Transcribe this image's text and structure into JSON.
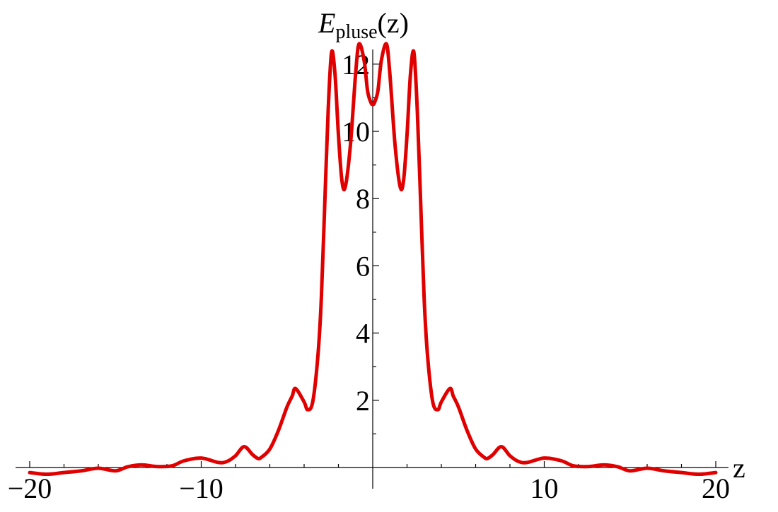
{
  "chart_data": {
    "type": "line",
    "title": "",
    "xlabel": "z",
    "ylabel": {
      "base": "E",
      "subscript": "pluse",
      "suffix": "(z)"
    },
    "xlim": [
      -20,
      20
    ],
    "ylim": [
      0,
      12.8
    ],
    "grid": false,
    "x_ticks": [
      {
        "value": -20,
        "label": "−20"
      },
      {
        "value": -10,
        "label": "−10"
      },
      {
        "value": 10,
        "label": "10"
      },
      {
        "value": 20,
        "label": "20"
      }
    ],
    "x_minor_ticks": [
      -18,
      -16,
      -14,
      -12,
      -8,
      -6,
      -4,
      -2,
      2,
      4,
      6,
      8,
      12,
      14,
      16,
      18
    ],
    "y_ticks": [
      {
        "value": 2,
        "label": "2"
      },
      {
        "value": 4,
        "label": "4"
      },
      {
        "value": 6,
        "label": "6"
      },
      {
        "value": 8,
        "label": "8"
      },
      {
        "value": 10,
        "label": "10"
      },
      {
        "value": 12,
        "label": "12"
      }
    ],
    "y_minor_ticks": [
      1,
      3,
      5,
      7,
      9,
      11
    ],
    "series": [
      {
        "color": "#e00000",
        "x": [
          -20,
          -19,
          -18,
          -17,
          -16,
          -15,
          -14.3,
          -13.5,
          -12.6,
          -11.7,
          -11,
          -10,
          -9,
          -8.5,
          -8,
          -7.5,
          -7,
          -6.7,
          -6.5,
          -6,
          -5.5,
          -5,
          -4.7,
          -4.5,
          -4,
          -3.8,
          -3.5,
          -3.2,
          -3,
          -2.8,
          -2.6,
          -2.4,
          -2.2,
          -2.0,
          -1.8,
          -1.6,
          -1.3,
          -1.0,
          -0.8,
          -0.5,
          -0.3,
          -0.1,
          0,
          0.1,
          0.3,
          0.5,
          0.8,
          1.0,
          1.3,
          1.6,
          1.8,
          2.0,
          2.2,
          2.4,
          2.6,
          2.8,
          3.0,
          3.2,
          3.5,
          3.8,
          4.0,
          4.5,
          4.7,
          5,
          5.5,
          6,
          6.5,
          6.7,
          7,
          7.5,
          8,
          8.5,
          9,
          10,
          11,
          11.7,
          12.6,
          13.5,
          14.3,
          15,
          16,
          17,
          18,
          19,
          20
        ],
        "y": [
          -0.15,
          -0.2,
          -0.15,
          -0.1,
          -0.02,
          -0.1,
          0.02,
          0.08,
          0.03,
          0.05,
          0.2,
          0.28,
          0.15,
          0.18,
          0.35,
          0.62,
          0.38,
          0.27,
          0.3,
          0.55,
          1.1,
          1.8,
          2.12,
          2.35,
          1.95,
          1.72,
          1.95,
          3.3,
          5.0,
          7.8,
          10.6,
          12.35,
          11.7,
          9.9,
          8.55,
          8.35,
          9.6,
          11.7,
          12.6,
          12.1,
          11.2,
          10.85,
          10.8,
          10.85,
          11.2,
          12.1,
          12.6,
          11.7,
          9.6,
          8.35,
          8.55,
          9.9,
          11.7,
          12.35,
          10.6,
          7.8,
          5.0,
          3.3,
          1.95,
          1.72,
          1.95,
          2.35,
          2.12,
          1.8,
          1.1,
          0.55,
          0.3,
          0.27,
          0.38,
          0.62,
          0.35,
          0.18,
          0.15,
          0.28,
          0.2,
          0.05,
          0.03,
          0.08,
          0.02,
          -0.1,
          -0.02,
          -0.1,
          -0.15,
          -0.2,
          -0.15
        ]
      }
    ]
  }
}
